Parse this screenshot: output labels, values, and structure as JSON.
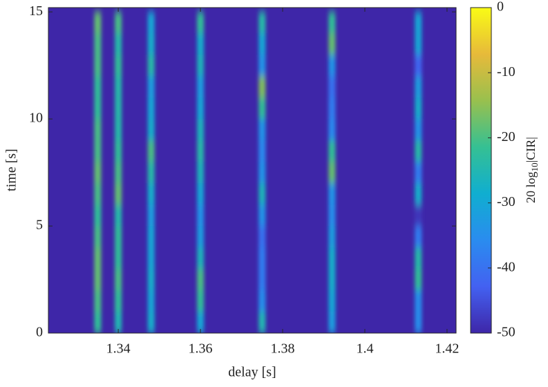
{
  "chart_data": {
    "type": "heatmap",
    "xlabel": "delay [s]",
    "ylabel": "time [s]",
    "colorbar_label": [
      "20 log",
      "10",
      "|CIR|"
    ],
    "x": [
      1.335,
      1.34,
      1.348,
      1.36,
      1.375,
      1.392,
      1.413
    ],
    "y": [
      0.5,
      1.5,
      2.5,
      3.5,
      4.5,
      5.5,
      6.5,
      7.5,
      8.5,
      9.5,
      10.5,
      11.5,
      12.5,
      13.5,
      14.5
    ],
    "z": [
      [
        -22,
        -25,
        -28,
        -30,
        -25,
        -32,
        -35
      ],
      [
        -20,
        -22,
        -30,
        -22,
        -35,
        -30,
        -35
      ],
      [
        -18,
        -20,
        -28,
        -20,
        -38,
        -28,
        -22
      ],
      [
        -18,
        -22,
        -30,
        -26,
        -38,
        -28,
        -24
      ],
      [
        -20,
        -22,
        -30,
        -32,
        -40,
        -32,
        -38
      ],
      [
        -22,
        -24,
        -32,
        -34,
        -34,
        -35,
        -48
      ],
      [
        -20,
        -18,
        -28,
        -30,
        -26,
        -34,
        -28
      ],
      [
        -18,
        -20,
        -24,
        -26,
        -34,
        -18,
        -38
      ],
      [
        -20,
        -22,
        -20,
        -24,
        -36,
        -22,
        -24
      ],
      [
        -20,
        -24,
        -28,
        -26,
        -34,
        -36,
        -34
      ],
      [
        -22,
        -24,
        -30,
        -30,
        -22,
        -38,
        -28
      ],
      [
        -22,
        -24,
        -32,
        -32,
        -16,
        -40,
        -32
      ],
      [
        -20,
        -22,
        -24,
        -26,
        -34,
        -34,
        -42
      ],
      [
        -20,
        -24,
        -28,
        -28,
        -30,
        -18,
        -30
      ],
      [
        -18,
        -20,
        -30,
        -22,
        -24,
        -22,
        -30
      ]
    ],
    "xlim": [
      1.323,
      1.4222
    ],
    "xticks": [
      1.34,
      1.36,
      1.38,
      1.4,
      1.42
    ],
    "ylim": [
      0,
      15.2
    ],
    "yticks": [
      0,
      5,
      10,
      15
    ],
    "clim": [
      -50,
      0
    ],
    "cticks": [
      0,
      -10,
      -20,
      -30,
      -40,
      -50
    ],
    "colormap": [
      "#3e26a8",
      "#4361f1",
      "#2a8cef",
      "#10aed0",
      "#35c093",
      "#99c04e",
      "#e7ba3a",
      "#f9fb15"
    ]
  }
}
